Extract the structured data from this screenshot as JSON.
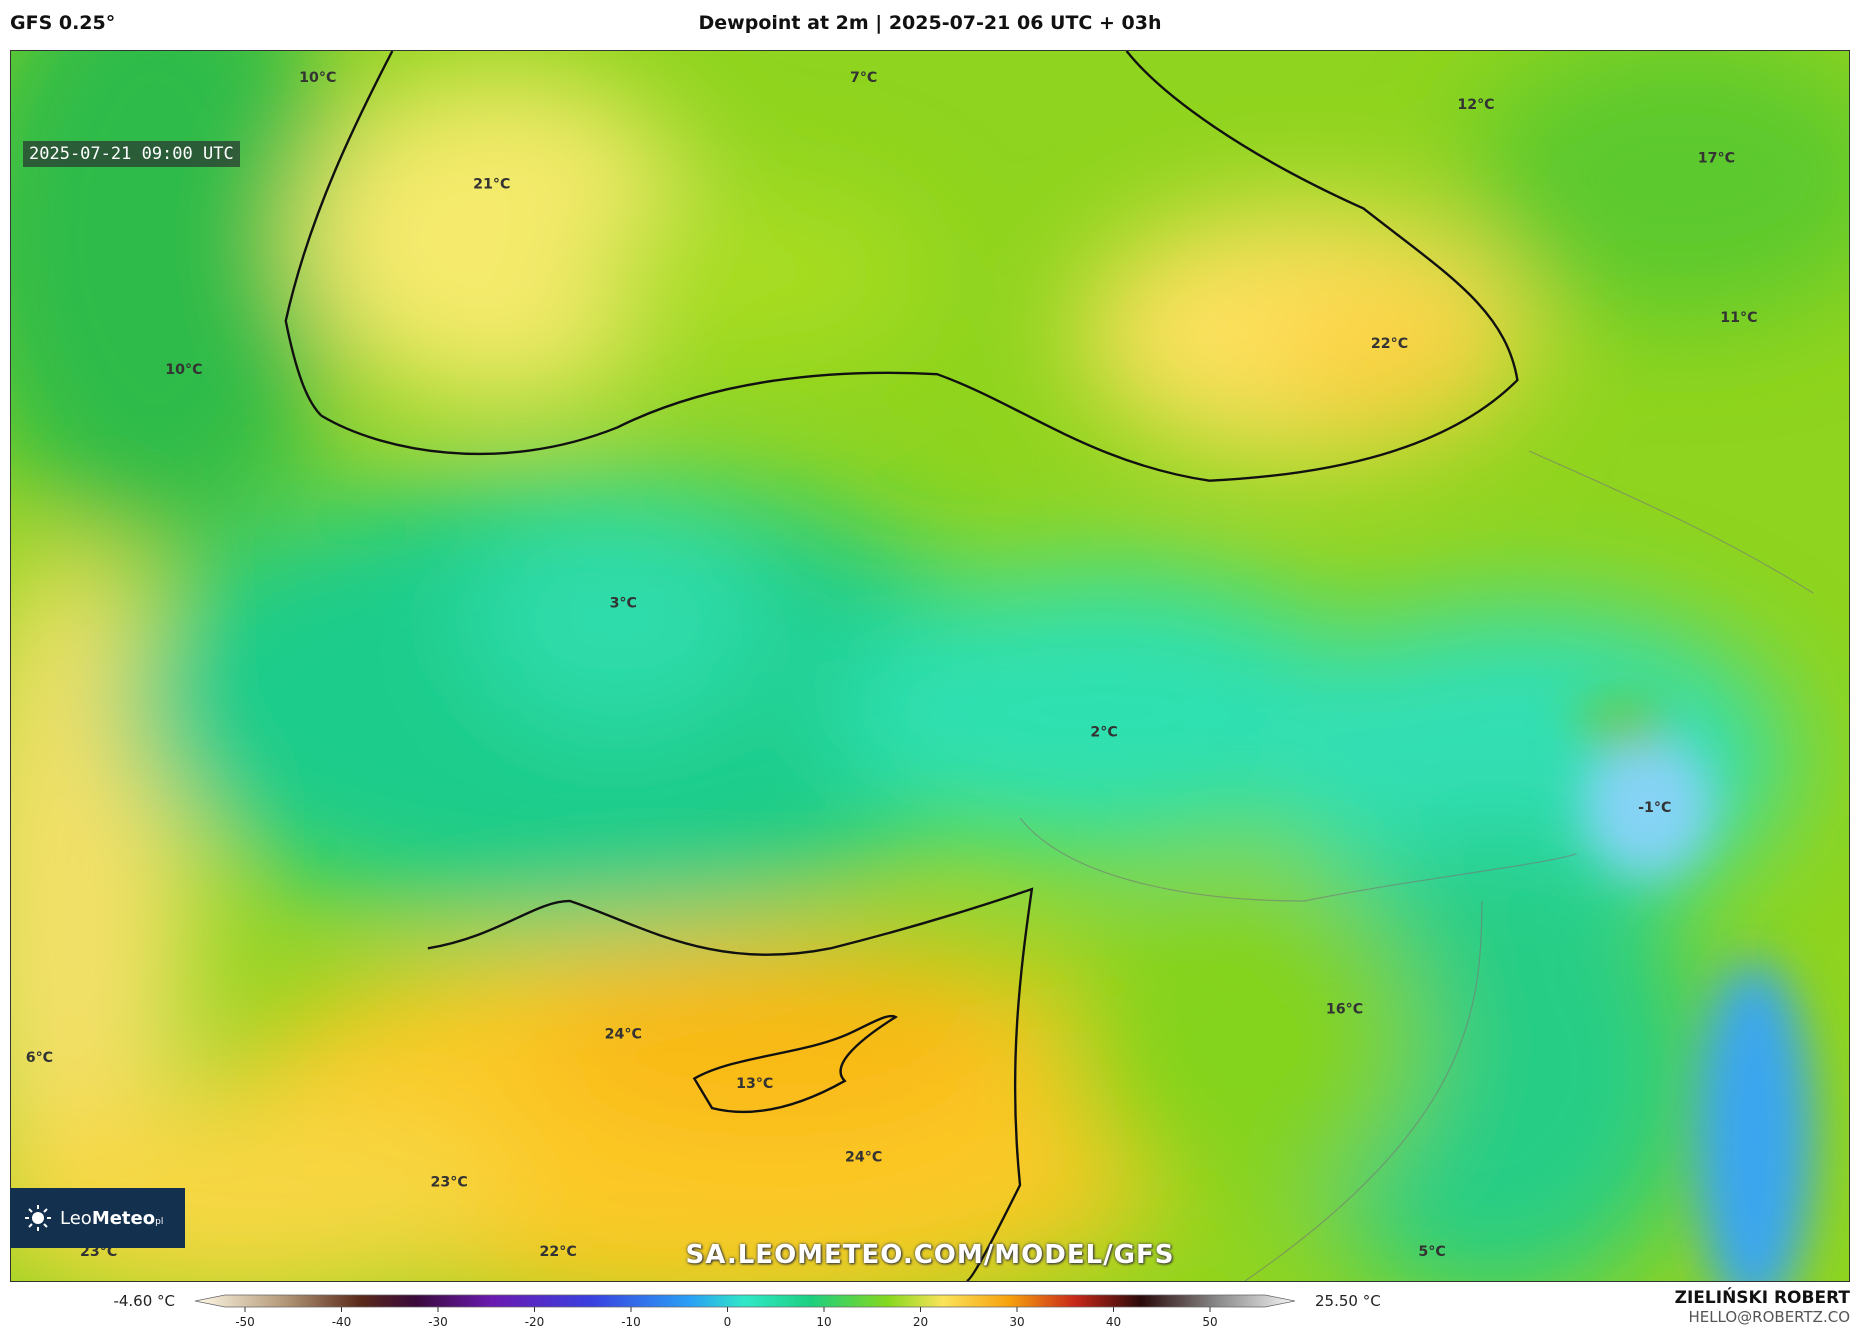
{
  "header": {
    "model": "GFS 0.25°",
    "title": "Dewpoint at 2m | 2025-07-21 06 UTC + 03h"
  },
  "map": {
    "valid_time": "2025-07-21 09:00 UTC",
    "labels": [
      "10°C",
      "7°C",
      "12°C",
      "17°C",
      "21°C",
      "22°C",
      "11°C",
      "10°C",
      "3°C",
      "2°C",
      "-1°C",
      "16°C",
      "24°C",
      "13°C",
      "24°C",
      "6°C",
      "23°C",
      "23°C",
      "22°C",
      "5°C"
    ],
    "watermark": "SA.LEOMETEO.COM/MODEL/GFS",
    "logo": {
      "leo": "Leo",
      "meteo": "Meteo",
      "suffix": "pl"
    }
  },
  "colorbar": {
    "min_label": "-4.60 °C",
    "max_label": "25.50 °C",
    "ticks": [
      -50,
      -40,
      -30,
      -20,
      -10,
      0,
      10,
      20,
      30,
      40,
      50
    ]
  },
  "credit": {
    "name": "ZIELIŃSKI ROBERT",
    "email": "HELLO@ROBERTZ.CO"
  }
}
